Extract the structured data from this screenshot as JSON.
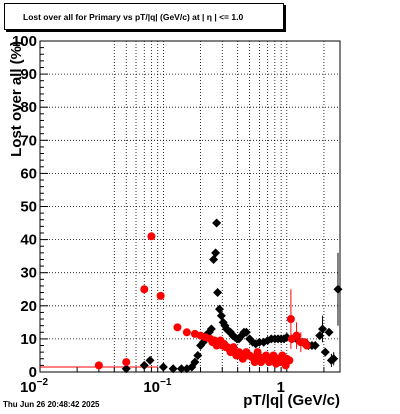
{
  "chart_data": {
    "type": "scatter",
    "title": "Lost over all for Primary vs pT/|q| (GeV/c) at |  η  | <= 1.0",
    "xlabel": "pT/|q| (GeV/c)",
    "ylabel": "Lost over all (%)",
    "x_scale": "log",
    "xlim": [
      0.01,
      2.7
    ],
    "ylim": [
      0,
      100
    ],
    "grid": true,
    "x_ticks": [
      {
        "value": 0.01,
        "label": "10",
        "exp": "−2"
      },
      {
        "value": 0.1,
        "label": "10",
        "exp": "−1"
      },
      {
        "value": 1,
        "label": "1",
        "exp": ""
      }
    ],
    "y_ticks": [
      "0",
      "10",
      "20",
      "30",
      "40",
      "50",
      "60",
      "70",
      "80",
      "90",
      "100"
    ],
    "series": [
      {
        "color": "#000000",
        "marker": "diamond",
        "points": [
          [
            0.05,
            1
          ],
          [
            0.07,
            2
          ],
          [
            0.078,
            3.5
          ],
          [
            0.1,
            1.5
          ],
          [
            0.12,
            1
          ],
          [
            0.14,
            1
          ],
          [
            0.155,
            1
          ],
          [
            0.17,
            1.5
          ],
          [
            0.18,
            3
          ],
          [
            0.19,
            5
          ],
          [
            0.2,
            8
          ],
          [
            0.21,
            9
          ],
          [
            0.22,
            11
          ],
          [
            0.235,
            12
          ],
          [
            0.245,
            13
          ],
          [
            0.255,
            34
          ],
          [
            0.265,
            36
          ],
          [
            0.275,
            24
          ],
          [
            0.285,
            19
          ],
          [
            0.295,
            17
          ],
          [
            0.305,
            15
          ],
          [
            0.315,
            14
          ],
          [
            0.325,
            13
          ],
          [
            0.335,
            12.5
          ],
          [
            0.35,
            12
          ],
          [
            0.365,
            11
          ],
          [
            0.38,
            10.5
          ],
          [
            0.395,
            10
          ],
          [
            0.41,
            10
          ],
          [
            0.43,
            11
          ],
          [
            0.45,
            12
          ],
          [
            0.47,
            12
          ],
          [
            0.5,
            10
          ],
          [
            0.53,
            9
          ],
          [
            0.56,
            8.5
          ],
          [
            0.6,
            9
          ],
          [
            0.65,
            9
          ],
          [
            0.7,
            9.5
          ],
          [
            0.75,
            10
          ],
          [
            0.8,
            10
          ],
          [
            0.85,
            10
          ],
          [
            0.9,
            10
          ],
          [
            0.95,
            10
          ],
          [
            1.0,
            10.5
          ],
          [
            1.1,
            10
          ],
          [
            1.2,
            10
          ],
          [
            1.35,
            9
          ],
          [
            1.5,
            8
          ],
          [
            1.6,
            8
          ],
          [
            1.7,
            8
          ],
          [
            1.85,
            11
          ],
          [
            1.95,
            13
          ],
          [
            2.05,
            6
          ],
          [
            2.2,
            12
          ],
          [
            2.3,
            3.5
          ],
          [
            2.4,
            4
          ],
          [
            2.6,
            25
          ],
          [
            0.27,
            45
          ]
        ],
        "errors": [
          [
            2.6,
            25,
            11
          ],
          [
            1.95,
            13,
            4
          ],
          [
            2.3,
            3.5,
            2
          ],
          [
            2.4,
            4,
            2
          ]
        ]
      },
      {
        "color": "#ff0000",
        "marker": "circle",
        "points": [
          [
            0.03,
            2
          ],
          [
            0.05,
            3
          ],
          [
            0.07,
            25
          ],
          [
            0.08,
            41
          ],
          [
            0.095,
            23
          ],
          [
            0.13,
            13.5
          ],
          [
            0.155,
            12
          ],
          [
            0.18,
            11.5
          ],
          [
            0.2,
            11
          ],
          [
            0.22,
            10.5
          ],
          [
            0.24,
            10
          ],
          [
            0.26,
            9.5
          ],
          [
            0.28,
            9
          ],
          [
            0.3,
            8
          ],
          [
            0.32,
            7.5
          ],
          [
            0.34,
            7
          ],
          [
            0.36,
            6.5
          ],
          [
            0.38,
            6
          ],
          [
            0.4,
            5.5
          ],
          [
            0.42,
            5
          ],
          [
            0.45,
            5
          ],
          [
            0.48,
            5
          ],
          [
            0.52,
            4.5
          ],
          [
            0.56,
            4.5
          ],
          [
            0.6,
            4.5
          ],
          [
            0.65,
            4
          ],
          [
            0.7,
            4
          ],
          [
            0.75,
            3.5
          ],
          [
            0.8,
            4
          ],
          [
            0.85,
            4
          ],
          [
            0.9,
            4
          ],
          [
            0.95,
            4
          ],
          [
            1.0,
            4
          ],
          [
            1.05,
            3.5
          ],
          [
            1.08,
            16
          ],
          [
            1.1,
            10
          ],
          [
            1.2,
            11
          ],
          [
            1.3,
            9
          ],
          [
            1.4,
            9
          ],
          [
            1.45,
            8
          ],
          [
            0.25,
            9
          ],
          [
            0.27,
            8
          ],
          [
            0.29,
            9.5
          ],
          [
            0.31,
            8.5
          ],
          [
            0.33,
            7.5
          ],
          [
            0.35,
            6
          ],
          [
            0.37,
            7.5
          ],
          [
            0.39,
            5
          ],
          [
            0.41,
            6
          ],
          [
            0.44,
            4
          ],
          [
            0.47,
            6
          ],
          [
            0.5,
            5
          ],
          [
            0.55,
            3
          ],
          [
            0.58,
            6
          ],
          [
            0.62,
            3
          ],
          [
            0.68,
            5
          ],
          [
            0.72,
            3
          ],
          [
            0.78,
            5
          ],
          [
            0.82,
            2.5
          ],
          [
            0.88,
            3
          ],
          [
            0.92,
            5
          ],
          [
            0.98,
            2
          ]
        ],
        "errors": [
          [
            1.08,
            16,
            9
          ],
          [
            1.2,
            11,
            4
          ],
          [
            1.3,
            9,
            3
          ]
        ]
      }
    ],
    "red_line": {
      "x_from": 0.01,
      "x_to": 0.09,
      "y": 1.5
    }
  },
  "timestamp": "Thu Jun 26 20:48:42 2025"
}
